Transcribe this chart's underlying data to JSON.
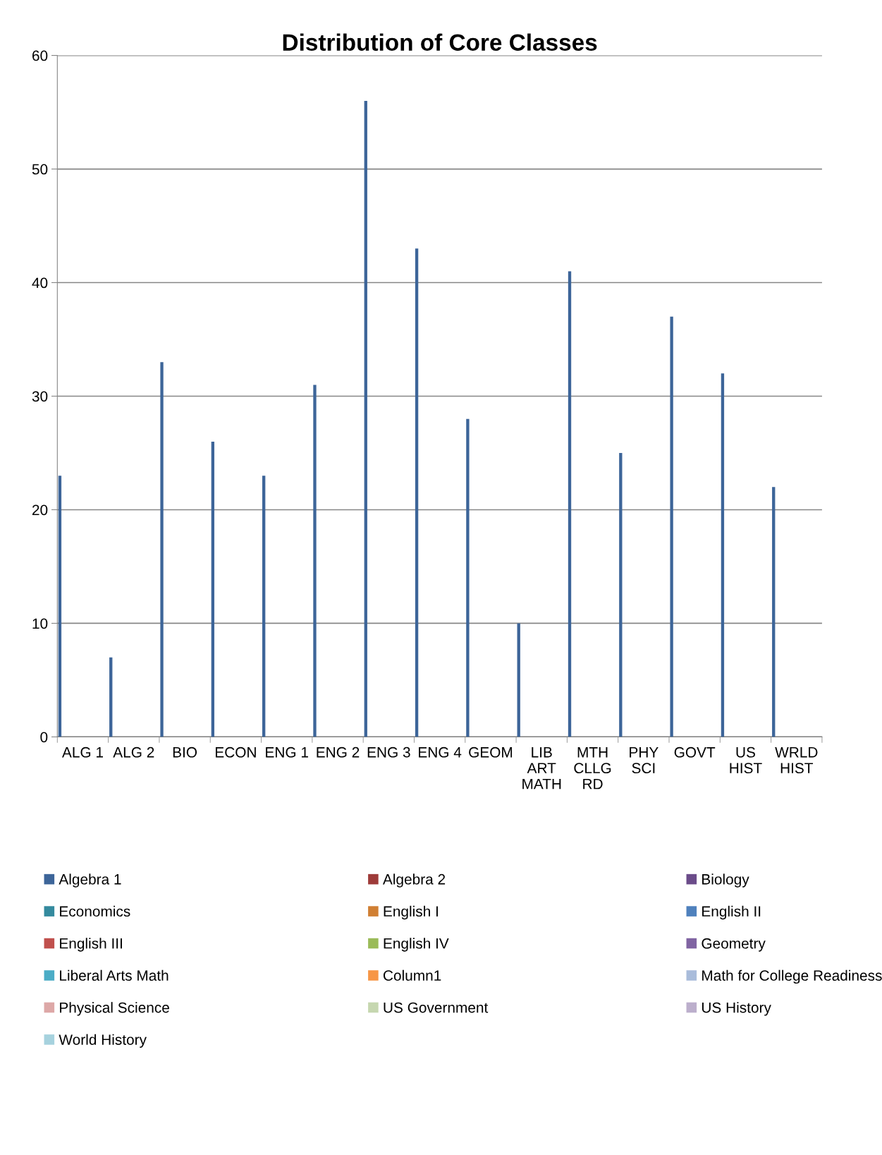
{
  "chart_data": {
    "type": "bar",
    "title": "Distribution of Core Classes",
    "categories": [
      "ALG 1",
      "ALG 2",
      "BIO",
      "ECON",
      "ENG 1",
      "ENG 2",
      "ENG 3",
      "ENG 4",
      "GEOM",
      "LIB ART MATH",
      "MTH CLLG RD",
      "PHY SCI",
      "GOVT",
      "US HIST",
      "WRLD HIST"
    ],
    "series": [
      {
        "name": "Algebra 1",
        "color": "#3d6599",
        "values": [
          23,
          7,
          33,
          26,
          23,
          31,
          56,
          43,
          28,
          10,
          41,
          25,
          37,
          32,
          22
        ]
      },
      {
        "name": "Algebra 2",
        "color": "#9e3b39",
        "values": [
          null,
          null,
          null,
          null,
          null,
          null,
          null,
          null,
          null,
          null,
          null,
          null,
          null,
          null,
          null
        ]
      },
      {
        "name": "Biology",
        "color": "#6b4c8a",
        "values": [
          null,
          null,
          null,
          null,
          null,
          null,
          null,
          null,
          null,
          null,
          null,
          null,
          null,
          null,
          null
        ]
      },
      {
        "name": "Economics",
        "color": "#348a9e",
        "values": [
          null,
          null,
          null,
          null,
          null,
          null,
          null,
          null,
          null,
          null,
          null,
          null,
          null,
          null,
          null
        ]
      },
      {
        "name": "English I",
        "color": "#d07f33",
        "values": [
          null,
          null,
          null,
          null,
          null,
          null,
          null,
          null,
          null,
          null,
          null,
          null,
          null,
          null,
          null
        ]
      },
      {
        "name": "English II",
        "color": "#4f81bd",
        "values": [
          null,
          null,
          null,
          null,
          null,
          null,
          null,
          null,
          null,
          null,
          null,
          null,
          null,
          null,
          null
        ]
      },
      {
        "name": "English III",
        "color": "#c0504d",
        "values": [
          null,
          null,
          null,
          null,
          null,
          null,
          null,
          null,
          null,
          null,
          null,
          null,
          null,
          null,
          null
        ]
      },
      {
        "name": "English IV",
        "color": "#9bbb59",
        "values": [
          null,
          null,
          null,
          null,
          null,
          null,
          null,
          null,
          null,
          null,
          null,
          null,
          null,
          null,
          null
        ]
      },
      {
        "name": "Geometry",
        "color": "#8064a2",
        "values": [
          null,
          null,
          null,
          null,
          null,
          null,
          null,
          null,
          null,
          null,
          null,
          null,
          null,
          null,
          null
        ]
      },
      {
        "name": "Liberal Arts Math",
        "color": "#4bacc6",
        "values": [
          null,
          null,
          null,
          null,
          null,
          null,
          null,
          null,
          null,
          null,
          null,
          null,
          null,
          null,
          null
        ]
      },
      {
        "name": "Column1",
        "color": "#f79646",
        "values": [
          null,
          null,
          null,
          null,
          null,
          null,
          null,
          null,
          null,
          null,
          null,
          null,
          null,
          null,
          null
        ]
      },
      {
        "name": "Math for College Readiness",
        "color": "#a9bcdb",
        "values": [
          null,
          null,
          null,
          null,
          null,
          null,
          null,
          null,
          null,
          null,
          null,
          null,
          null,
          null,
          null
        ]
      },
      {
        "name": "Physical Science",
        "color": "#dda8a7",
        "values": [
          null,
          null,
          null,
          null,
          null,
          null,
          null,
          null,
          null,
          null,
          null,
          null,
          null,
          null,
          null
        ]
      },
      {
        "name": "US Government",
        "color": "#c6d7b0",
        "values": [
          null,
          null,
          null,
          null,
          null,
          null,
          null,
          null,
          null,
          null,
          null,
          null,
          null,
          null,
          null
        ]
      },
      {
        "name": "US History",
        "color": "#bcafcc",
        "values": [
          null,
          null,
          null,
          null,
          null,
          null,
          null,
          null,
          null,
          null,
          null,
          null,
          null,
          null,
          null
        ]
      },
      {
        "name": "World History",
        "color": "#a6d2de",
        "values": [
          null,
          null,
          null,
          null,
          null,
          null,
          null,
          null,
          null,
          null,
          null,
          null,
          null,
          null,
          null
        ]
      }
    ],
    "ylim": [
      0,
      60
    ],
    "yticks": [
      0,
      10,
      20,
      30,
      40,
      50,
      60
    ],
    "grid": "y",
    "legend": "bottom"
  }
}
